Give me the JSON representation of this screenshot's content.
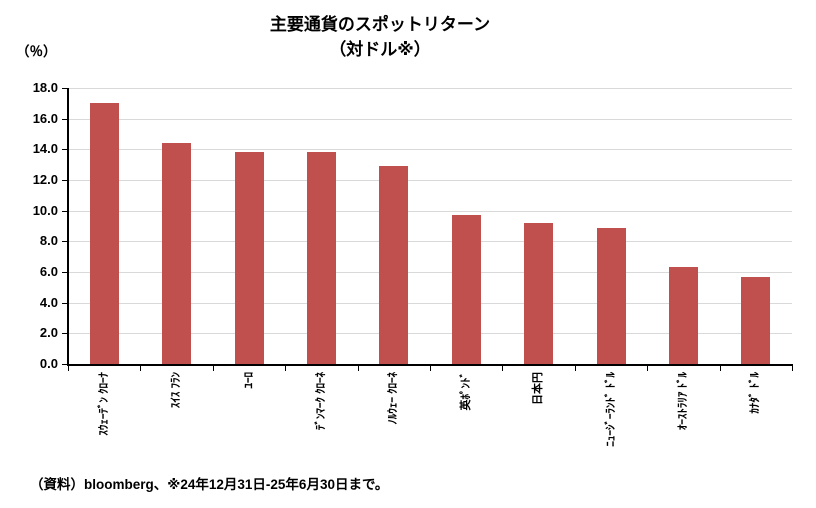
{
  "title": {
    "line1": "主要通貨のスポットリターン",
    "line2": "（対ドル※）"
  },
  "y_axis_unit": "（％）",
  "source_note": "（資料）bloomberg、※24年12月31日-25年6月30日まで。",
  "colors": {
    "bar": "#C0504D",
    "gridline": "#D9D9D9",
    "axis": "#000000",
    "background": "#FFFFFF",
    "text": "#000000"
  },
  "chart_data": {
    "type": "bar",
    "title": "主要通貨のスポットリターン（対ドル※）",
    "ylabel": "（％）",
    "xlabel": "",
    "categories": [
      "ｽｳｪｰﾃﾞﾝ ｸﾛｰﾅ",
      "ｽｲｽ ﾌﾗﾝ",
      "ﾕｰﾛ",
      "ﾃﾞﾝﾏｰｸ ｸﾛｰﾈ",
      "ﾉﾙｳｪｰ ｸﾛｰﾈ",
      "英ﾎﾟﾝﾄﾞ",
      "日本円",
      "ﾆｭｰｼﾞｰﾗﾝﾄﾞ ﾄﾞﾙ",
      "ｵｰｽﾄﾗﾘｱ ﾄﾞﾙ",
      "ｶﾅﾀﾞ ﾄﾞﾙ"
    ],
    "values": [
      17.0,
      14.4,
      13.8,
      13.8,
      12.9,
      9.7,
      9.2,
      8.9,
      6.3,
      5.7
    ],
    "ylim": [
      0,
      18
    ],
    "ytick_step": 2,
    "ytick_decimals": 1,
    "grid": "horizontal",
    "legend": "none",
    "bar_color": "#C0504D"
  }
}
